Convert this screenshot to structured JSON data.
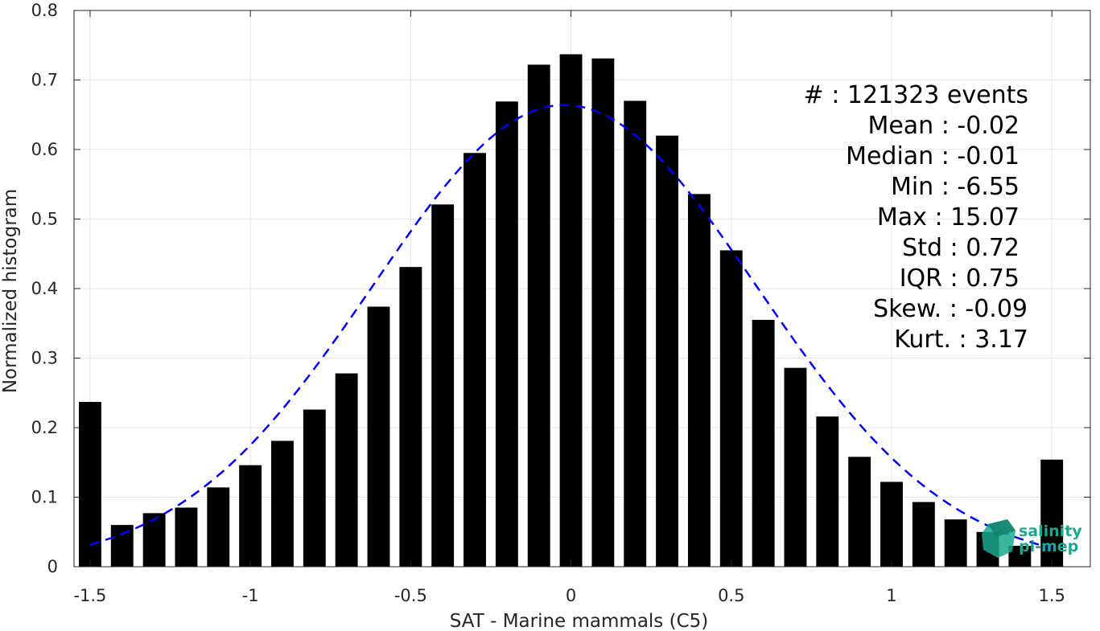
{
  "chart_data": {
    "type": "bar",
    "xlabel": "SAT - Marine mammals (C5)",
    "ylabel": "Normalized histogram",
    "xlim": [
      -1.55,
      1.62
    ],
    "ylim": [
      0,
      0.8
    ],
    "grid": true,
    "x_ticks": [
      {
        "value": -1.5,
        "label": "-1.5"
      },
      {
        "value": -1.0,
        "label": "-1"
      },
      {
        "value": -0.5,
        "label": "-0.5"
      },
      {
        "value": 0.0,
        "label": "0"
      },
      {
        "value": 0.5,
        "label": "0.5"
      },
      {
        "value": 1.0,
        "label": "1"
      },
      {
        "value": 1.5,
        "label": "1.5"
      }
    ],
    "y_ticks": [
      {
        "value": 0.0,
        "label": "0"
      },
      {
        "value": 0.1,
        "label": "0.1"
      },
      {
        "value": 0.2,
        "label": "0.2"
      },
      {
        "value": 0.3,
        "label": "0.3"
      },
      {
        "value": 0.4,
        "label": "0.4"
      },
      {
        "value": 0.5,
        "label": "0.5"
      },
      {
        "value": 0.6,
        "label": "0.6"
      },
      {
        "value": 0.7,
        "label": "0.7"
      },
      {
        "value": 0.8,
        "label": "0.8"
      }
    ],
    "bar_color": "#000000",
    "bars": {
      "x": [
        -1.5,
        -1.4,
        -1.3,
        -1.2,
        -1.1,
        -1.0,
        -0.9,
        -0.8,
        -0.7,
        -0.6,
        -0.5,
        -0.4,
        -0.3,
        -0.2,
        -0.1,
        0.0,
        0.1,
        0.2,
        0.3,
        0.4,
        0.5,
        0.6,
        0.7,
        0.8,
        0.9,
        1.0,
        1.1,
        1.2,
        1.3,
        1.4,
        1.5
      ],
      "values": [
        0.237,
        0.06,
        0.077,
        0.085,
        0.114,
        0.146,
        0.181,
        0.226,
        0.278,
        0.374,
        0.431,
        0.521,
        0.595,
        0.669,
        0.722,
        0.737,
        0.731,
        0.67,
        0.62,
        0.536,
        0.455,
        0.355,
        0.286,
        0.216,
        0.158,
        0.122,
        0.093,
        0.068,
        0.05,
        0.03,
        0.154
      ]
    },
    "fit_curve": {
      "style": "dashed",
      "color": "#0000ff",
      "mean": -0.02,
      "std": 0.6,
      "peak": 0.664,
      "x_range": [
        -1.5,
        1.5
      ]
    },
    "stats": [
      "#  : 121323 events",
      "Mean : -0.02",
      "Median : -0.01",
      "Min : -6.55",
      "Max : 15.07",
      "Std : 0.72",
      "IQR : 0.75",
      "Skew. : -0.09",
      "Kurt. : 3.17"
    ],
    "logo": {
      "line1": "salinity",
      "line2": "pi-mep",
      "color": "#1aa88f"
    }
  }
}
